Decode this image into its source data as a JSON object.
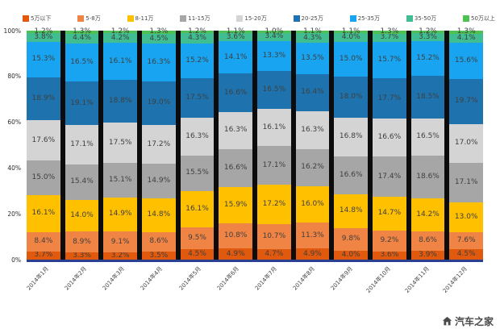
{
  "chart_data": {
    "type": "bar",
    "variant": "stacked-100",
    "title": "",
    "xlabel": "",
    "ylabel": "",
    "ylim": [
      0,
      100
    ],
    "unit": "%",
    "legend_position": "top",
    "grid": false,
    "plot_background": "#0c0c0c",
    "axis_line_color": "#2b3f92",
    "label_color": "#3f3f3f",
    "y_ticks": [
      "0%",
      "20%",
      "40%",
      "60%",
      "80%",
      "100%"
    ],
    "categories": [
      "2014年1月",
      "2014年2月",
      "2014年3月",
      "2014年4月",
      "2014年5月",
      "2014年6月",
      "2014年7月",
      "2014年8月",
      "2014年9月",
      "2014年10月",
      "2014年11月",
      "2014年12月"
    ],
    "series": [
      {
        "name": "5万以下",
        "color": "#e0590c",
        "values": [
          3.7,
          3.3,
          3.2,
          3.5,
          4.5,
          4.9,
          4.7,
          4.9,
          4.0,
          3.6,
          3.9,
          4.5
        ]
      },
      {
        "name": "5-8万",
        "color": "#ef8445",
        "values": [
          8.4,
          8.9,
          9.1,
          8.6,
          9.5,
          10.8,
          10.7,
          11.3,
          9.8,
          9.2,
          8.6,
          7.6
        ]
      },
      {
        "name": "8-11万",
        "color": "#ffc000",
        "values": [
          16.1,
          14.0,
          14.9,
          14.8,
          16.1,
          15.9,
          17.2,
          16.0,
          14.8,
          14.7,
          14.2,
          13.0
        ]
      },
      {
        "name": "11-15万",
        "color": "#a6a6a6",
        "values": [
          15.0,
          15.4,
          15.1,
          14.9,
          15.5,
          16.6,
          17.1,
          16.2,
          16.6,
          17.4,
          18.6,
          17.1
        ]
      },
      {
        "name": "15-20万",
        "color": "#d4d4d4",
        "values": [
          17.6,
          17.1,
          17.5,
          17.2,
          16.3,
          16.3,
          16.1,
          16.3,
          16.8,
          16.6,
          16.5,
          17.0
        ]
      },
      {
        "name": "20-25万",
        "color": "#1e73ae",
        "values": [
          18.9,
          19.1,
          18.8,
          19.0,
          17.5,
          16.6,
          16.5,
          16.4,
          18.0,
          17.7,
          18.5,
          19.7
        ]
      },
      {
        "name": "25-35万",
        "color": "#18a4f0",
        "values": [
          15.3,
          16.5,
          16.1,
          16.3,
          15.2,
          14.1,
          13.3,
          13.5,
          15.0,
          15.7,
          15.2,
          15.6
        ]
      },
      {
        "name": "35-50万",
        "color": "#41bd92",
        "values": [
          3.8,
          4.4,
          4.2,
          4.5,
          4.3,
          3.6,
          3.4,
          4.3,
          4.0,
          3.7,
          3.3,
          4.1
        ]
      },
      {
        "name": "50万以上",
        "color": "#4fc052",
        "values": [
          1.2,
          1.3,
          1.2,
          1.3,
          1.2,
          1.1,
          1.0,
          1.1,
          1.1,
          1.3,
          1.2,
          1.3
        ]
      }
    ]
  },
  "watermark": {
    "text": "汽车之家"
  }
}
